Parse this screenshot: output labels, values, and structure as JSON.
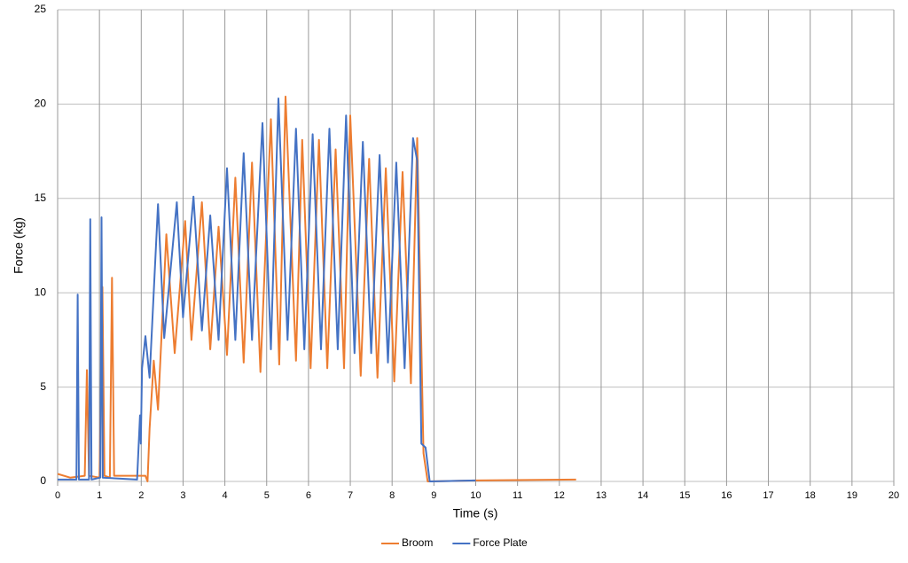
{
  "chart_data": {
    "type": "line",
    "x_label": "Time (s)",
    "y_label": "Force (kg)",
    "xlim": [
      0,
      20
    ],
    "xticks": [
      0,
      1,
      2,
      3,
      4,
      5,
      6,
      7,
      8,
      9,
      10,
      11,
      12,
      13,
      14,
      15,
      16,
      17,
      18,
      19,
      20
    ],
    "ylim": [
      0,
      25
    ],
    "yticks": [
      0,
      5,
      10,
      15,
      20,
      25
    ],
    "grid": true,
    "legend": "bottom",
    "series": [
      {
        "name": "Broom",
        "color": "#ed7d31",
        "x": [
          0,
          0.3,
          0.65,
          0.7,
          0.75,
          1.0,
          1.07,
          1.12,
          1.25,
          1.3,
          1.35,
          1.7,
          2.1,
          2.15,
          2.2,
          2.3,
          2.4,
          2.6,
          2.8,
          3.05,
          3.2,
          3.45,
          3.65,
          3.85,
          4.05,
          4.25,
          4.45,
          4.65,
          4.85,
          5.1,
          5.3,
          5.45,
          5.7,
          5.85,
          6.05,
          6.25,
          6.45,
          6.65,
          6.85,
          7.0,
          7.25,
          7.45,
          7.65,
          7.85,
          8.05,
          8.25,
          8.45,
          8.6,
          8.75,
          8.85,
          10,
          12.4
        ],
        "values": [
          0.4,
          0.2,
          0.3,
          5.9,
          0.3,
          0.2,
          10.3,
          0.3,
          0.2,
          10.8,
          0.3,
          0.3,
          0.3,
          0,
          2.8,
          6.4,
          3.8,
          13.1,
          6.8,
          13.8,
          7.5,
          14.8,
          7.0,
          13.5,
          6.7,
          16.1,
          6.3,
          16.9,
          5.8,
          19.2,
          6.2,
          20.4,
          6.4,
          18.1,
          6.0,
          18.1,
          6.0,
          17.6,
          6.0,
          19.4,
          5.6,
          17.1,
          5.5,
          16.6,
          5.3,
          16.4,
          5.2,
          18.2,
          1.5,
          0,
          0.05,
          0.1
        ]
      },
      {
        "name": "Force Plate",
        "color": "#4472c4",
        "x": [
          0,
          0.45,
          0.48,
          0.51,
          0.75,
          0.78,
          0.81,
          1.02,
          1.05,
          1.08,
          1.9,
          1.97,
          1.99,
          2.02,
          2.1,
          2.2,
          2.4,
          2.55,
          2.85,
          3.0,
          3.25,
          3.45,
          3.65,
          3.85,
          4.05,
          4.25,
          4.45,
          4.65,
          4.9,
          5.1,
          5.28,
          5.5,
          5.7,
          5.9,
          6.1,
          6.3,
          6.5,
          6.7,
          6.9,
          7.1,
          7.3,
          7.5,
          7.7,
          7.9,
          8.1,
          8.3,
          8.5,
          8.6,
          8.7,
          8.8,
          8.9,
          10
        ],
        "values": [
          0.1,
          0.1,
          9.9,
          0.1,
          0.1,
          13.9,
          0.1,
          0.2,
          14.0,
          0.2,
          0.1,
          3.5,
          2.0,
          6.0,
          7.7,
          5.5,
          14.7,
          7.6,
          14.8,
          8.7,
          15.1,
          8.0,
          14.1,
          7.5,
          16.6,
          7.5,
          17.4,
          7.5,
          19.0,
          7.0,
          20.3,
          7.5,
          18.7,
          7.0,
          18.4,
          7.0,
          18.7,
          7.0,
          19.4,
          6.8,
          18.0,
          6.8,
          17.3,
          6.3,
          16.9,
          6.0,
          18.2,
          17.0,
          2.0,
          1.8,
          0,
          0.05
        ]
      }
    ]
  }
}
